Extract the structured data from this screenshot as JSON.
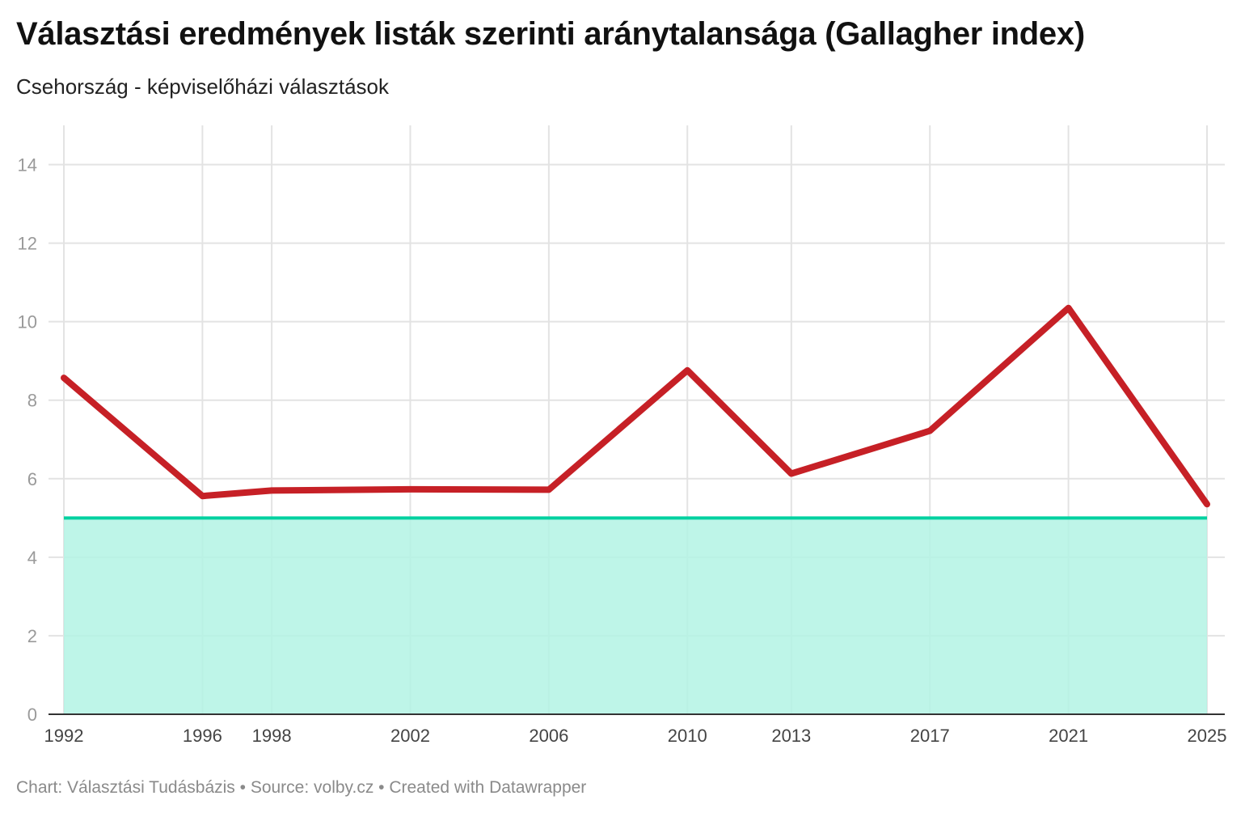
{
  "header": {
    "title": "Választási eredmények listák szerinti aránytalansága (Gallagher index)",
    "subtitle": "Csehország - képviselőházi választások"
  },
  "footer": {
    "credit": "Chart: Választási Tudásbázis • Source: volby.cz • Created with Datawrapper"
  },
  "colors": {
    "line": "#c62026",
    "threshold_line": "#00d1a0",
    "threshold_fill": "#b3f3e4",
    "grid": "#e3e3e3",
    "axis": "#333333"
  },
  "chart_data": {
    "type": "line",
    "title": "Választási eredmények listák szerinti aránytalansága (Gallagher index)",
    "subtitle": "Csehország - képviselőházi választások",
    "xlabel": "",
    "ylabel": "",
    "xlim": [
      1992,
      2025
    ],
    "ylim": [
      0,
      15
    ],
    "x_ticks": [
      1992,
      1996,
      1998,
      2002,
      2006,
      2010,
      2013,
      2017,
      2021,
      2025
    ],
    "y_ticks": [
      0,
      2,
      4,
      6,
      8,
      10,
      12,
      14
    ],
    "grid": true,
    "legend": "none",
    "series": [
      {
        "x": [
          1992,
          1996,
          1998,
          2002,
          2006,
          2010,
          2013,
          2017,
          2021,
          2025
        ],
        "values": [
          8.57,
          5.56,
          5.7,
          5.73,
          5.72,
          8.76,
          6.13,
          7.22,
          10.35,
          5.35
        ]
      }
    ],
    "threshold": {
      "value": 5,
      "from": 1992,
      "to": 2025
    }
  }
}
